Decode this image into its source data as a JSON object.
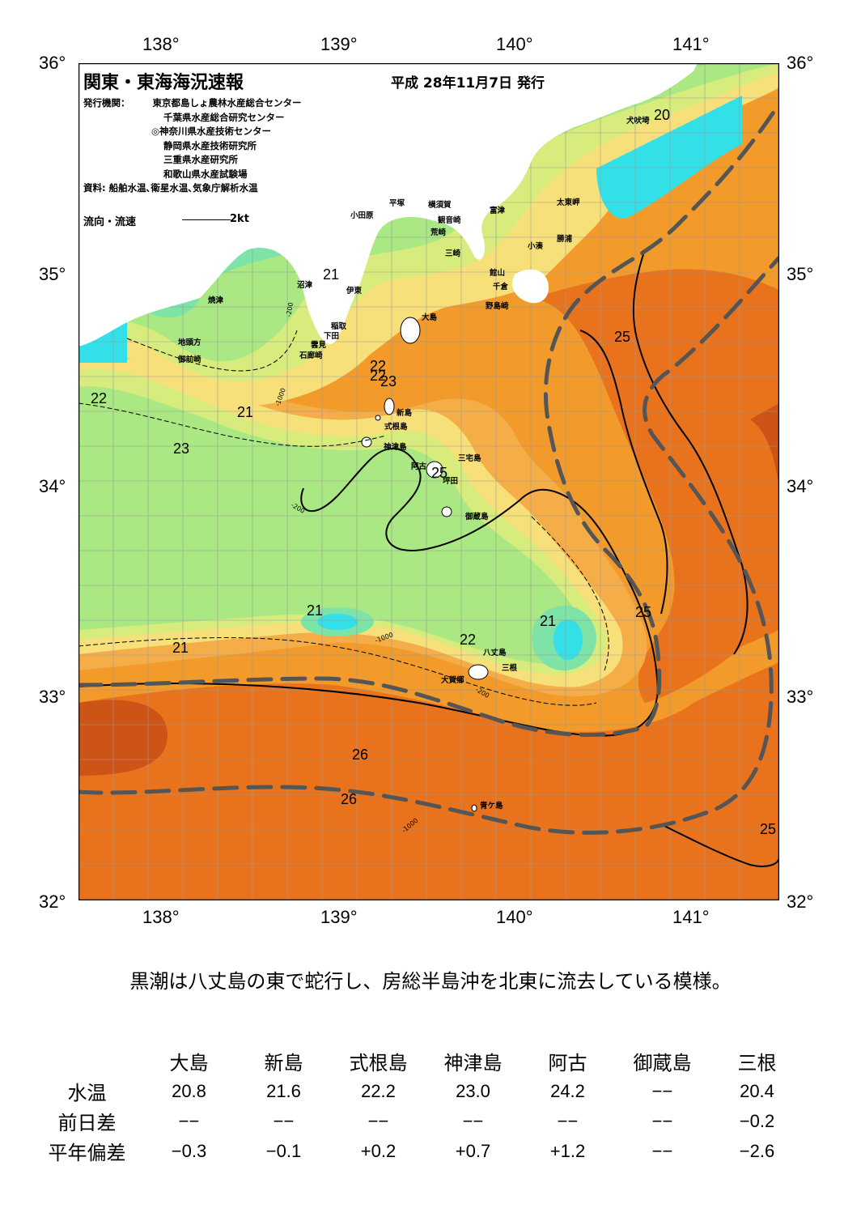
{
  "header": {
    "title": "関東・東海海況速報",
    "issue_date": "平成  28年11月7日  発行",
    "agency_label": "発行機関：",
    "agencies": [
      "東京都島しょ農林水産総合センター",
      "千葉県水産総合研究センター",
      "◎神奈川県水産技術センター",
      "静岡県水産技術研究所",
      "三重県水産研究所",
      "和歌山県水産試験場"
    ],
    "source": "資料: 船舶水温､衛星水温､気象庁解析水温",
    "flow_legend": "流向・流速",
    "flow_unit": "2kt"
  },
  "axes": {
    "lon_labels": [
      "138°",
      "139°",
      "140°",
      "141°"
    ],
    "lat_labels": [
      "36°",
      "35°",
      "34°",
      "33°",
      "32°"
    ]
  },
  "places": {
    "inubozaki": "犬吠埼",
    "taitomisaki": "太東岬",
    "katsuura": "勝浦",
    "kominato": "小湊",
    "tomitsu": "富津",
    "tateyama": "館山",
    "chikura": "千倉",
    "nojimazaki": "野島崎",
    "odawara": "小田原",
    "hiratsuka": "平塚",
    "yokosuka": "横須賀",
    "kannonzaki": "観音崎",
    "arasaki": "荒崎",
    "misaki": "三崎",
    "numazu": "沼津",
    "ito": "伊東",
    "inatori": "稲取",
    "shimoda": "下田",
    "kumomi": "雲見",
    "irozaki": "石廊崎",
    "yaizu": "焼津",
    "jitokata": "地頭方",
    "omaezaki": "御前崎",
    "oshima": "大島",
    "niijima": "新島",
    "shikinejima": "式根島",
    "kozushima": "神津島",
    "miyakejima": "三宅島",
    "ako": "阿古",
    "tsubota": "坪田",
    "mikurajima": "御蔵島",
    "hachijojima": "八丈島",
    "mitsune": "三根",
    "okago": "大賀郷",
    "aogashima": "青ケ島"
  },
  "temperature_labels": [
    "20",
    "21",
    "25",
    "22",
    "22",
    "21",
    "23",
    "21",
    "22",
    "23",
    "25",
    "21",
    "22",
    "21",
    "25",
    "22",
    "26",
    "26",
    "25"
  ],
  "depth_labels": [
    "-1000",
    "-200",
    "-1000",
    "-200",
    "-1000",
    "-200"
  ],
  "colors": {
    "t19": "#33e0e8",
    "t20": "#7de3a7",
    "t21": "#a9e882",
    "t22": "#d8ec7d",
    "t23": "#f7e07a",
    "t24": "#f5ad48",
    "t25": "#f29a2a",
    "t26": "#e8731c",
    "t27": "#cc5416",
    "land": "#ffffff",
    "kuroshio_axis": "#555555"
  },
  "summary": "黒潮は八丈島の東で蛇行し、房総半島沖を北東に流去している模様。",
  "obs_table": {
    "stations": [
      "大島",
      "新島",
      "式根島",
      "神津島",
      "阿古",
      "御蔵島",
      "三根"
    ],
    "rows": [
      {
        "label": "水温",
        "values": [
          "20.8",
          "21.6",
          "22.2",
          "23.0",
          "24.2",
          "−−",
          "20.4"
        ]
      },
      {
        "label": "前日差",
        "values": [
          "−−",
          "−−",
          "−−",
          "−−",
          "−−",
          "−−",
          "−0.2"
        ]
      },
      {
        "label": "平年偏差",
        "values": [
          "−0.3",
          "−0.1",
          "+0.2",
          "+0.7",
          "+1.2",
          "−−",
          "−2.6"
        ]
      }
    ]
  }
}
